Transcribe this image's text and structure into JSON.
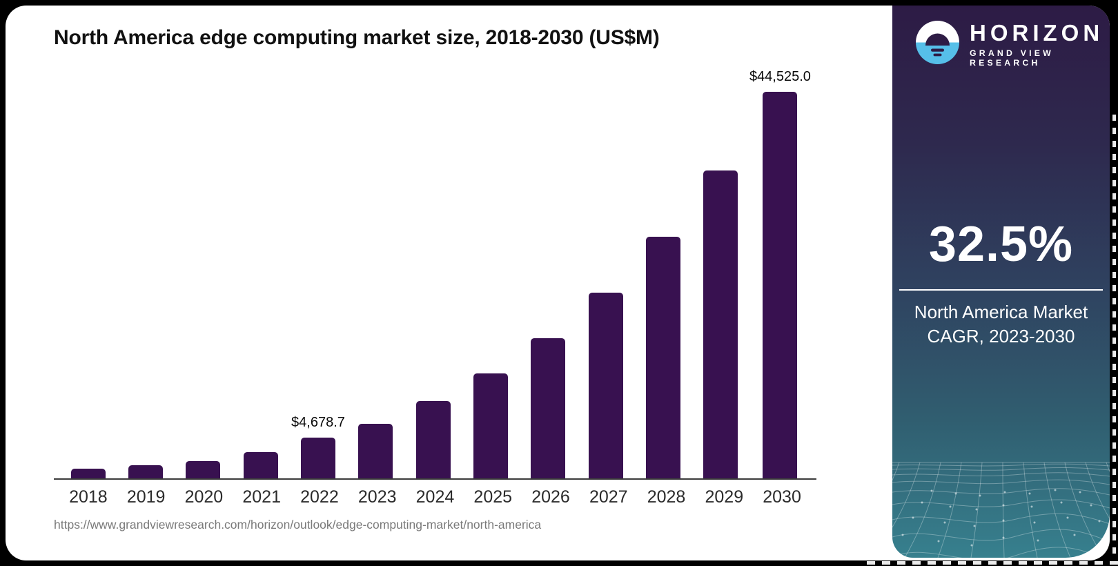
{
  "chart": {
    "title": "North America edge computing market size, 2018-2030 (US$M)",
    "source_url": "https://www.grandviewresearch.com/horizon/outlook/edge-computing-market/north-america",
    "bar_color": "#381150",
    "axis_color": "#3c3c3c"
  },
  "chart_data": {
    "type": "bar",
    "title": "North America edge computing market size, 2018-2030 (US$M)",
    "categories": [
      "2018",
      "2019",
      "2020",
      "2021",
      "2022",
      "2023",
      "2024",
      "2025",
      "2026",
      "2027",
      "2028",
      "2029",
      "2030"
    ],
    "values": [
      1150,
      1550,
      2000,
      3050,
      4678.7,
      6300,
      8900,
      12100,
      16150,
      21400,
      27800,
      35500,
      44525.0
    ],
    "data_labels": [
      {
        "index": 4,
        "year": "2022",
        "text": "$4,678.7"
      },
      {
        "index": 12,
        "year": "2030",
        "text": "$44,525.0"
      }
    ],
    "xlabel": "",
    "ylabel": "",
    "ylim": [
      0,
      44525
    ],
    "grid": false,
    "legend": false,
    "bar_color": "#381150"
  },
  "panel": {
    "brand": {
      "name": "HORIZON",
      "subtitle": "GRAND VIEW RESEARCH"
    },
    "cagr_value": "32.5%",
    "cagr_label_line1": "North America Market",
    "cagr_label_line2": "CAGR, 2023-2030",
    "colors": {
      "gradient_top": "#2d1b45",
      "gradient_bottom": "#37808e",
      "logo_blue": "#56bfe9",
      "logo_dark": "#2e1c45",
      "text": "#ffffff"
    }
  }
}
